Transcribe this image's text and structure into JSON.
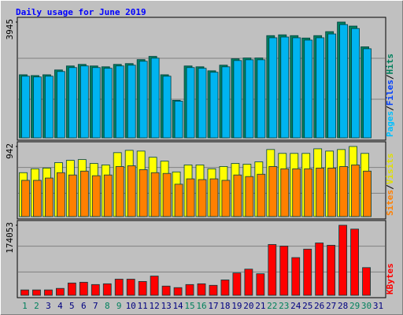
{
  "chart_data": {
    "type": "bar",
    "title": "Daily usage for June 2019",
    "categories": [
      1,
      2,
      3,
      4,
      5,
      6,
      7,
      8,
      9,
      10,
      11,
      12,
      13,
      14,
      15,
      16,
      17,
      18,
      19,
      20,
      21,
      22,
      23,
      24,
      25,
      26,
      27,
      28,
      29,
      30,
      31
    ],
    "weekends": [
      1,
      2,
      8,
      9,
      15,
      16,
      22,
      23,
      29,
      30
    ],
    "weekend_color": "#00805c",
    "weekday_color": "#000080",
    "legend_separator": "/",
    "panels": [
      {
        "ylim": [
          0,
          3945
        ],
        "yticks": [
          3945
        ],
        "legend": [
          {
            "text": "Pages",
            "color": "#00c0ff"
          },
          {
            "text": "Files",
            "color": "#0040ff"
          },
          {
            "text": "Hits",
            "color": "#00805c"
          }
        ],
        "series": [
          {
            "color": "#008060",
            "values": [
              2149,
              2122,
              2149,
              2313,
              2449,
              2503,
              2449,
              2421,
              2503,
              2530,
              2666,
              2775,
              2149,
              1279,
              2449,
              2421,
              2285,
              2476,
              2693,
              2721,
              2721,
              3483,
              3510,
              3483,
              3401,
              3483,
              3619,
              3945,
              3809,
              3102,
              null
            ]
          },
          {
            "color": "#00b4f0",
            "values": [
              2100,
              2075,
              2100,
              2260,
              2395,
              2450,
              2395,
              2370,
              2450,
              2475,
              2610,
              2715,
              2100,
              1250,
              2395,
              2370,
              2235,
              2420,
              2635,
              2660,
              2660,
              3410,
              3435,
              3410,
              3330,
              3410,
              3540,
              3860,
              3725,
              3035,
              null
            ]
          }
        ]
      },
      {
        "ylim": [
          0,
          942
        ],
        "yticks": [
          942
        ],
        "legend": [
          {
            "text": "Sites",
            "color": "#ff8000"
          },
          {
            "text": "Visits",
            "color": "#e0e000"
          }
        ],
        "series": [
          {
            "color": "#ffff00",
            "values": [
              590,
              642,
              652,
              725,
              756,
              766,
              714,
              694,
              859,
              890,
              880,
              797,
              745,
              600,
              694,
              694,
              642,
              673,
              714,
              704,
              735,
              901,
              849,
              849,
              849,
              911,
              880,
              901,
              942,
              849,
              null
            ]
          },
          {
            "color": "#ff8000",
            "values": [
              487,
              487,
              518,
              590,
              559,
              611,
              549,
              559,
              673,
              683,
              631,
              590,
              580,
              435,
              507,
              497,
              507,
              487,
              559,
              538,
              569,
              673,
              642,
              642,
              642,
              652,
              652,
              673,
              694,
              611,
              null
            ]
          }
        ]
      },
      {
        "ylim": [
          0,
          174053
        ],
        "yticks": [
          174053
        ],
        "legend": [
          {
            "text": "KBytes",
            "color": "#ff0000"
          }
        ],
        "series": [
          {
            "color": "#ff0000",
            "values": [
              13389,
              13389,
              13389,
              17214,
              30603,
              32515,
              26778,
              28690,
              40166,
              40166,
              34428,
              47816,
              22952,
              19127,
              26778,
              28690,
              24865,
              38253,
              55467,
              65031,
              53555,
              126237,
              122411,
              93720,
              114760,
              130062,
              124324,
              174053,
              164489,
              68856,
              null
            ]
          }
        ]
      }
    ]
  }
}
